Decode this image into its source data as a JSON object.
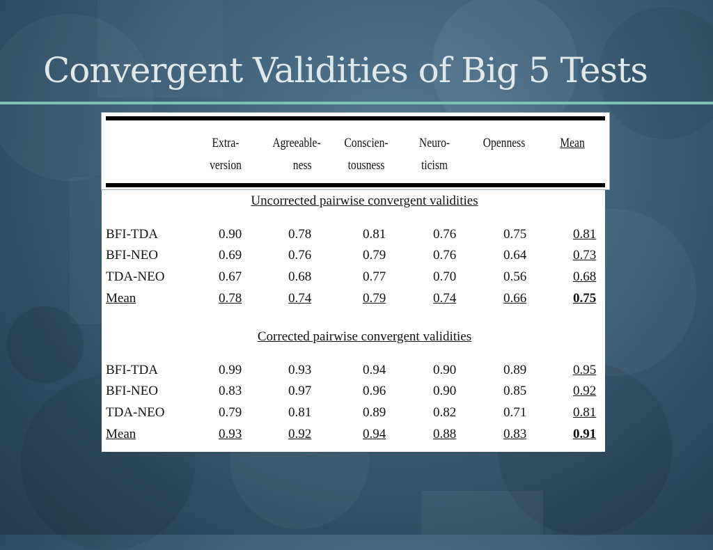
{
  "slide": {
    "title": "Convergent Validities of Big 5 Tests"
  },
  "table": {
    "columns": [
      {
        "line1": "Extra-",
        "line2": "version"
      },
      {
        "line1": "Agreeable-",
        "line2": "ness"
      },
      {
        "line1": "Conscien-",
        "line2": "tousness"
      },
      {
        "line1": "Neuro-",
        "line2": "ticism"
      },
      {
        "line1": "Openness",
        "line2": ""
      },
      {
        "line1": "Mean",
        "line2": ""
      }
    ],
    "sections": [
      {
        "title": "Uncorrected pairwise convergent validities",
        "rows": [
          {
            "label": "BFI-TDA",
            "values": [
              "0.90",
              "0.78",
              "0.81",
              "0.76",
              "0.75",
              "0.81"
            ]
          },
          {
            "label": "BFI-NEO",
            "values": [
              "0.69",
              "0.76",
              "0.79",
              "0.76",
              "0.64",
              "0.73"
            ]
          },
          {
            "label": "TDA-NEO",
            "values": [
              "0.67",
              "0.68",
              "0.77",
              "0.70",
              "0.56",
              "0.68"
            ]
          },
          {
            "label": "Mean",
            "values": [
              "0.78",
              "0.74",
              "0.79",
              "0.74",
              "0.66",
              "0.75"
            ]
          }
        ]
      },
      {
        "title": "Corrected pairwise convergent validities",
        "rows": [
          {
            "label": "BFI-TDA",
            "values": [
              "0.99",
              "0.93",
              "0.94",
              "0.90",
              "0.89",
              "0.95"
            ]
          },
          {
            "label": "BFI-NEO",
            "values": [
              "0.83",
              "0.97",
              "0.96",
              "0.90",
              "0.85",
              "0.92"
            ]
          },
          {
            "label": "TDA-NEO",
            "values": [
              "0.79",
              "0.81",
              "0.89",
              "0.82",
              "0.71",
              "0.81"
            ]
          },
          {
            "label": "Mean",
            "values": [
              "0.93",
              "0.92",
              "0.94",
              "0.88",
              "0.83",
              "0.91"
            ]
          }
        ]
      }
    ]
  }
}
